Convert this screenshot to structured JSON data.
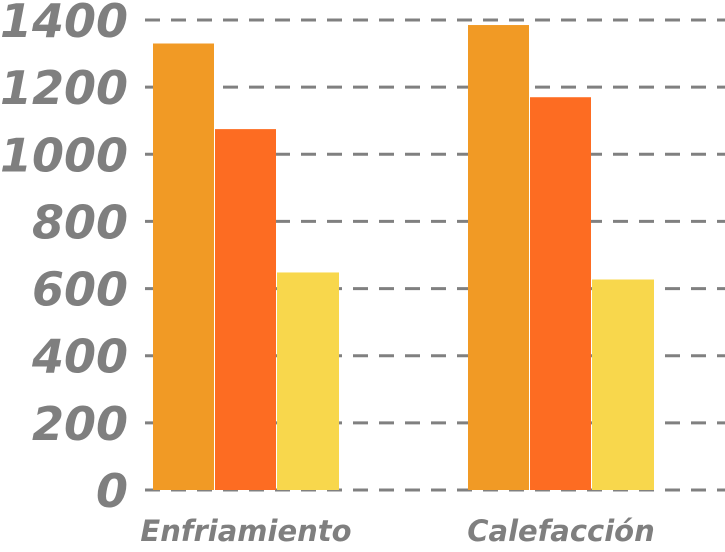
{
  "chart_data": {
    "type": "bar",
    "categories": [
      "Enfriamiento",
      "Calefacción"
    ],
    "series": [
      {
        "values": [
          1330,
          1385
        ],
        "color": "#f19a25"
      },
      {
        "values": [
          1075,
          1170
        ],
        "color": "#fd6c22"
      },
      {
        "values": [
          648,
          627
        ],
        "color": "#f8d74c"
      }
    ],
    "yticks": [
      0,
      200,
      400,
      600,
      800,
      1000,
      1200,
      1400
    ],
    "ylim": [
      0,
      1400
    ],
    "title": "",
    "xlabel": "",
    "ylabel": "",
    "grid": true,
    "grid_style": "dashed",
    "legend": false
  }
}
